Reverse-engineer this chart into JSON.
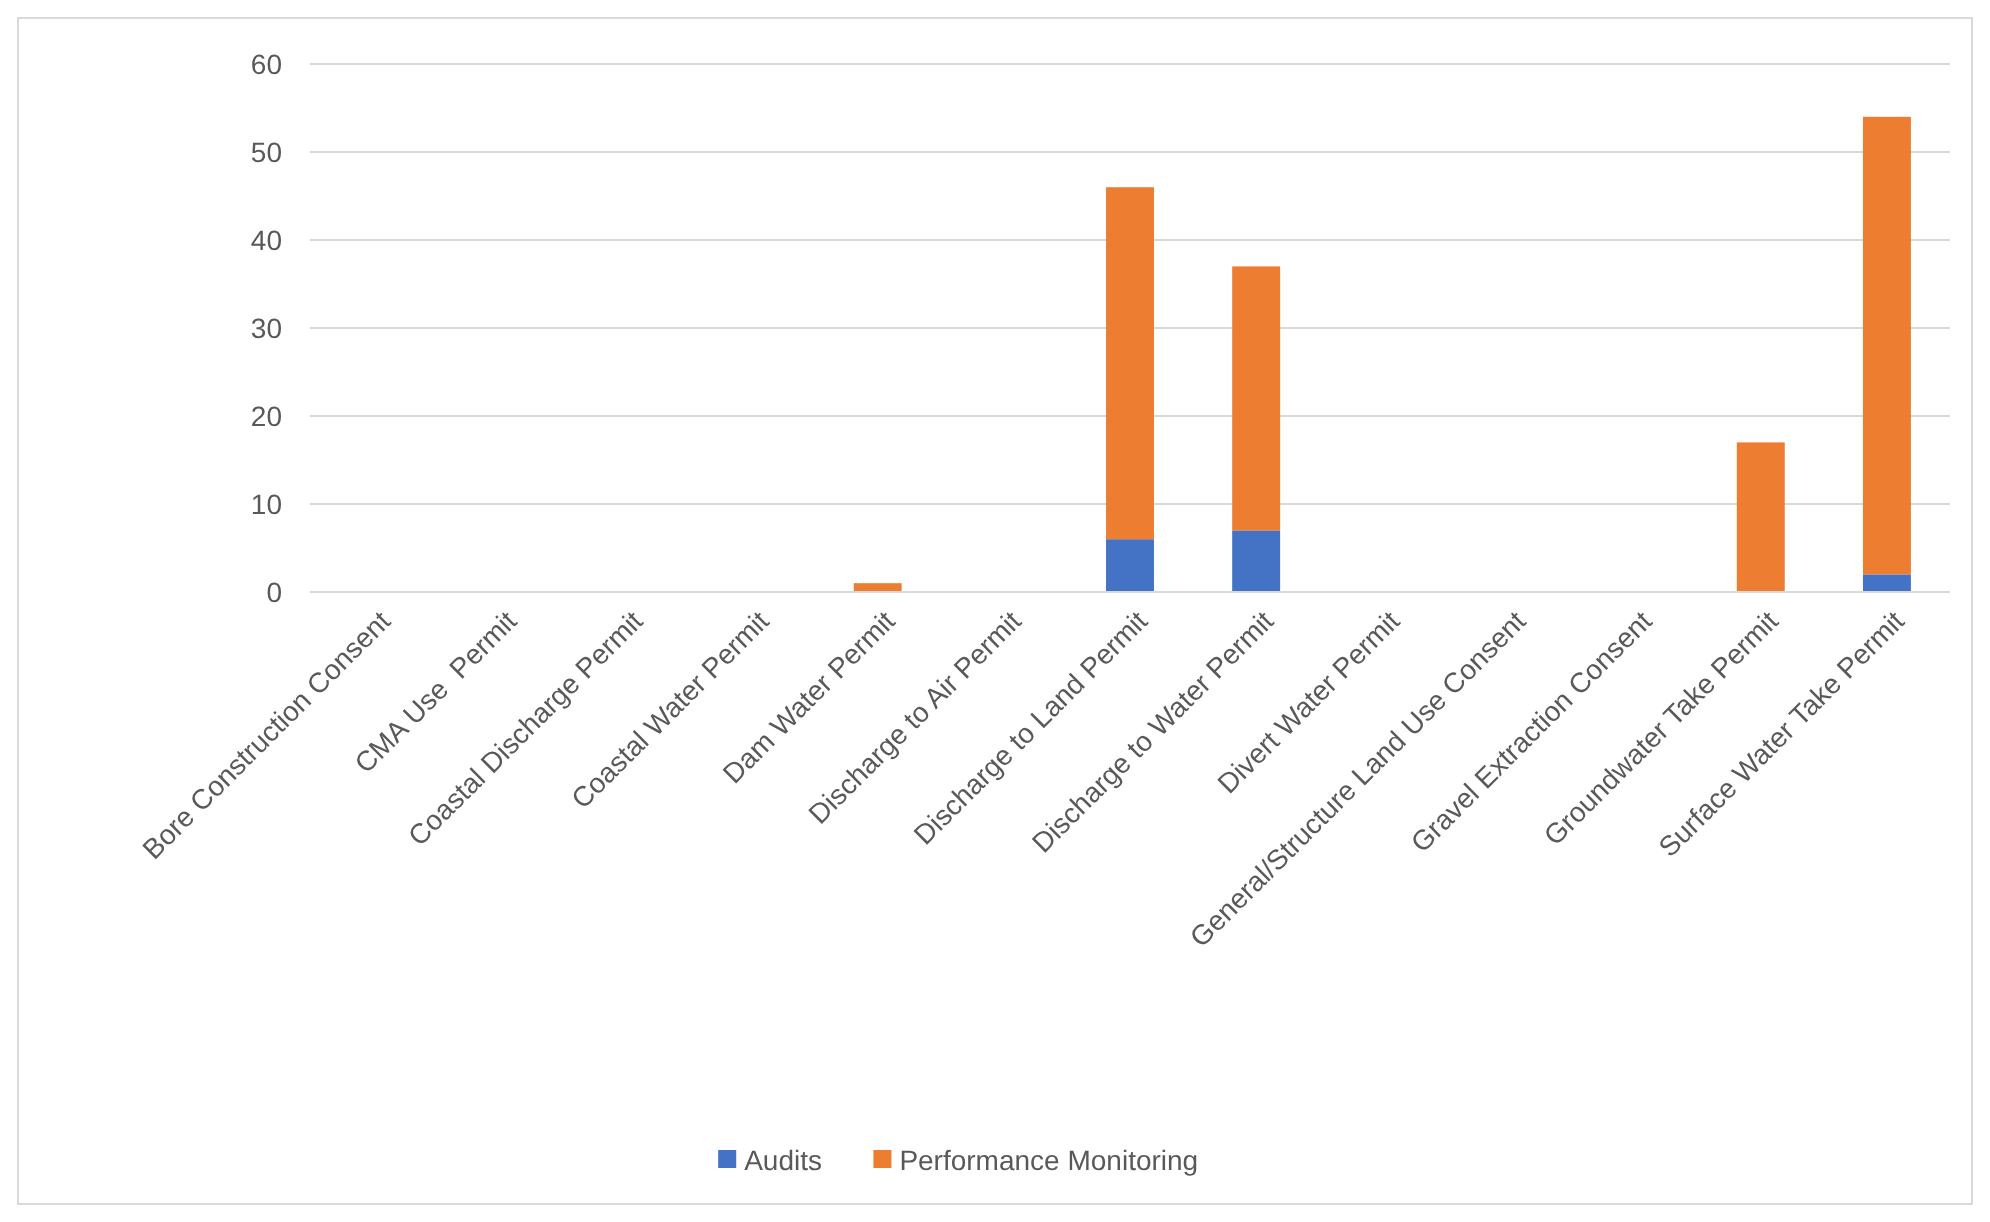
{
  "chart_data": {
    "type": "bar",
    "stacked": true,
    "categories": [
      "Bore Construction Consent",
      "CMA Use  Permit",
      "Coastal Discharge Permit",
      "Coastal Water Permit",
      "Dam Water Permit",
      "Discharge to Air Permit",
      "Discharge to Land Permit",
      "Discharge to Water Permit",
      "Divert Water Permit",
      "General/Structure Land Use Consent",
      "Gravel Extraction Consent",
      "Groundwater Take Permit",
      "Surface Water Take Permit"
    ],
    "series": [
      {
        "name": "Audits",
        "color": "#4472c4",
        "values": [
          0,
          0,
          0,
          0,
          0,
          0,
          6,
          7,
          0,
          0,
          0,
          0,
          2
        ]
      },
      {
        "name": "Performance Monitoring",
        "color": "#ed7d31",
        "values": [
          0,
          0,
          0,
          0,
          1,
          0,
          40,
          30,
          0,
          0,
          0,
          17,
          52
        ]
      }
    ],
    "ylim": [
      0,
      60
    ],
    "yticks": [
      0,
      10,
      20,
      30,
      40,
      50,
      60
    ],
    "grid": "y",
    "legend": "bottom"
  }
}
